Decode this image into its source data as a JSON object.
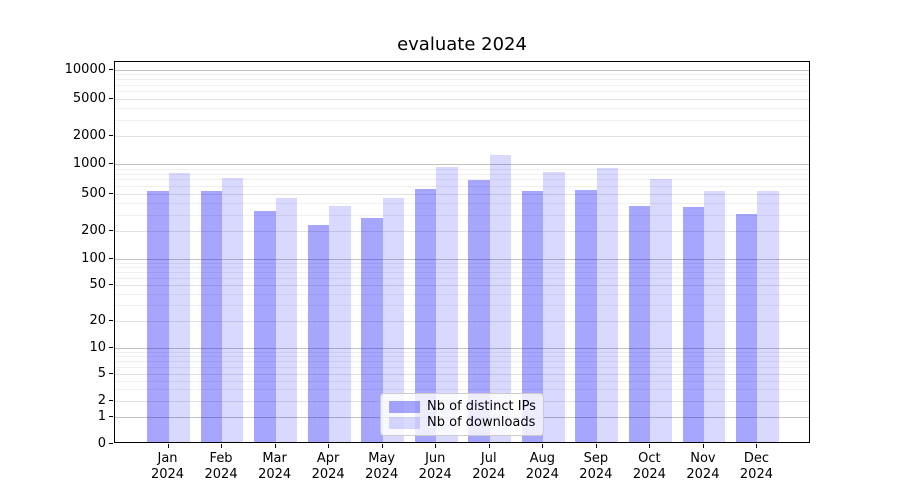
{
  "chart": {
    "title": "evaluate 2024"
  },
  "chart_data": {
    "type": "bar",
    "title": "evaluate 2024",
    "categories": [
      "Jan 2024",
      "Feb 2024",
      "Mar 2024",
      "Apr 2024",
      "May 2024",
      "Jun 2024",
      "Jul 2024",
      "Aug 2024",
      "Sep 2024",
      "Oct 2024",
      "Nov 2024",
      "Dec 2024"
    ],
    "series": [
      {
        "name": "Nb of distinct IPs",
        "color": "#0000ff",
        "alpha": 0.35,
        "values": [
          524,
          520,
          317,
          224,
          270,
          553,
          675,
          520,
          532,
          361,
          352,
          300
        ]
      },
      {
        "name": "Nb of downloads",
        "color": "#0000ff",
        "alpha": 0.15,
        "values": [
          800,
          715,
          445,
          363,
          437,
          920,
          1230,
          815,
          890,
          695,
          524,
          524
        ]
      }
    ],
    "xlabel": "",
    "ylabel": "",
    "yscale": "symlog",
    "ytick_values": [
      0,
      1,
      2,
      5,
      10,
      20,
      50,
      100,
      200,
      500,
      1000,
      2000,
      5000,
      10000
    ],
    "ytick_labels": [
      "0",
      "1",
      "2",
      "5",
      "10",
      "20",
      "50",
      "100",
      "200",
      "500",
      "1000",
      "2000",
      "5000",
      "10000"
    ],
    "ylim": [
      0,
      12000
    ],
    "grid": true,
    "legend_position": "lower center"
  }
}
